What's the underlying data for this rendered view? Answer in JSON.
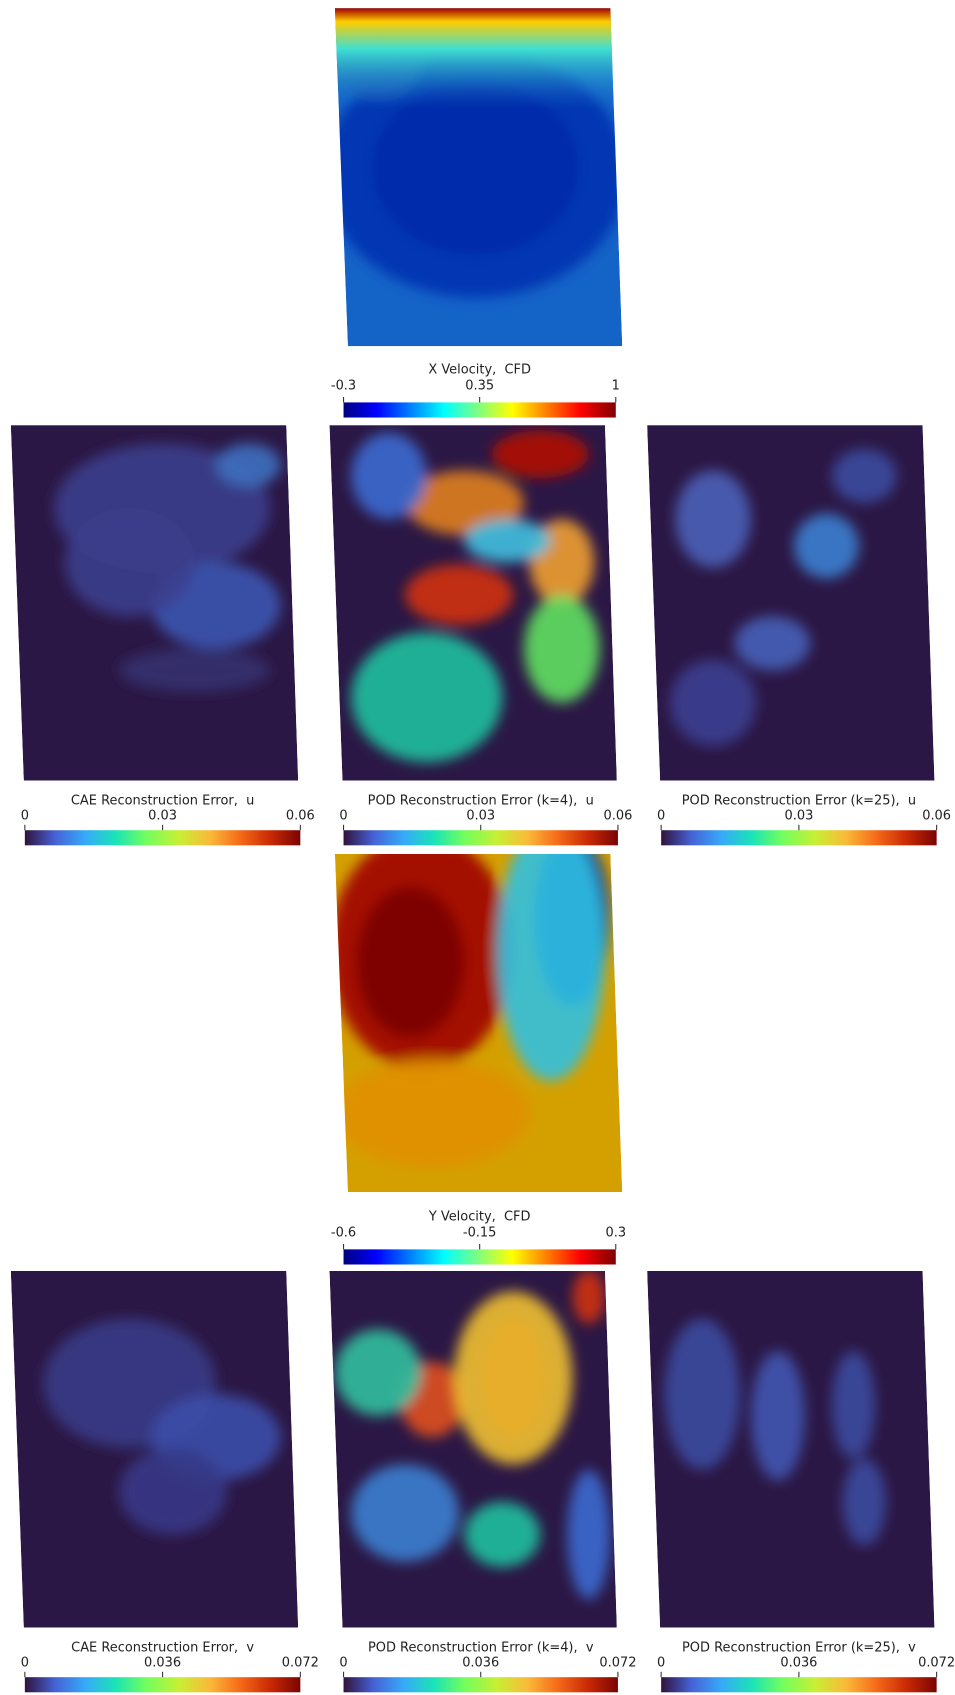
{
  "panels": [
    {
      "title": "X Velocity,  CFD",
      "ticks": [
        -0.3,
        0.35,
        1
      ]
    },
    {
      "title": "CAE Reconstruction Error,  u",
      "ticks": [
        0,
        0.03,
        0.06
      ]
    },
    {
      "title": "POD Reconstruction Error (k=4),  u",
      "ticks": [
        0,
        0.03,
        0.06
      ]
    },
    {
      "title": "POD Reconstruction Error (k=25),  u",
      "ticks": [
        0,
        0.03,
        0.06
      ]
    },
    {
      "title": "Y Velocity,  CFD",
      "ticks": [
        -0.6,
        -0.15,
        0.3
      ]
    },
    {
      "title": "CAE Reconstruction Error,  v",
      "ticks": [
        0,
        0.036,
        0.072
      ]
    },
    {
      "title": "POD Reconstruction Error (k=4),  v",
      "ticks": [
        0,
        0.036,
        0.072
      ]
    },
    {
      "title": "POD Reconstruction Error (k=25),  v",
      "ticks": [
        0,
        0.036,
        0.072
      ]
    }
  ]
}
